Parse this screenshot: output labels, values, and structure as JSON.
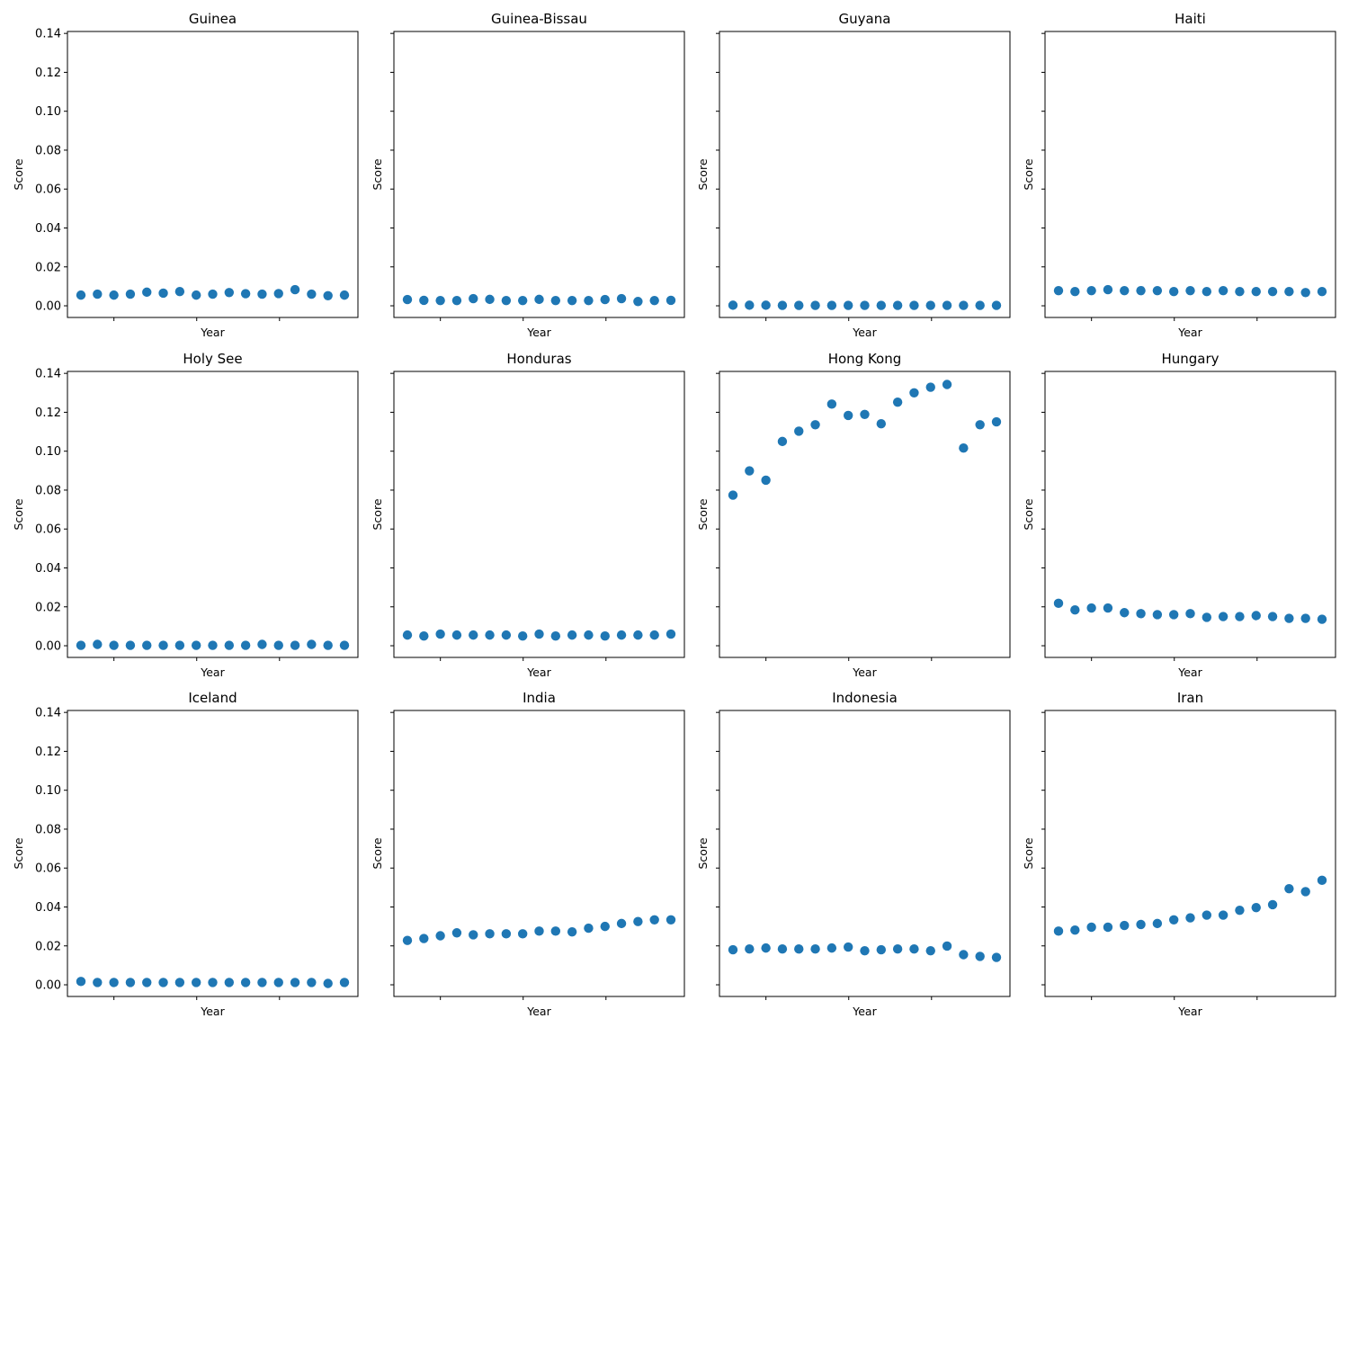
{
  "figure": {
    "ylabel": "Score",
    "xlabel": "Year",
    "y_tick_labels": [
      "0.00",
      "0.02",
      "0.04",
      "0.06",
      "0.08",
      "0.10",
      "0.12",
      "0.14"
    ],
    "marker_color": "#1f77b4"
  },
  "chart_data": [
    {
      "type": "scatter",
      "title": "Guinea",
      "xlabel": "Year",
      "ylabel": "Score",
      "ylim": [
        -0.006,
        0.141
      ],
      "y_ticks": [
        0,
        0.02,
        0.04,
        0.06,
        0.08,
        0.1,
        0.12,
        0.14
      ],
      "x_tick_labels_shown": false,
      "grid": false,
      "series": [
        {
          "values": [
            0.0055,
            0.006,
            0.0055,
            0.006,
            0.007,
            0.0065,
            0.0073,
            0.0055,
            0.006,
            0.0068,
            0.0062,
            0.006,
            0.0063,
            0.0083,
            0.006,
            0.0052,
            0.0055
          ]
        }
      ]
    },
    {
      "type": "scatter",
      "title": "Guinea-Bissau",
      "xlabel": "Year",
      "ylabel": "Score",
      "ylim": [
        -0.006,
        0.141
      ],
      "y_ticks": [
        0,
        0.02,
        0.04,
        0.06,
        0.08,
        0.1,
        0.12,
        0.14
      ],
      "x_tick_labels_shown": false,
      "grid": false,
      "series": [
        {
          "values": [
            0.0032,
            0.0028,
            0.0027,
            0.0027,
            0.0037,
            0.0033,
            0.0027,
            0.0027,
            0.0033,
            0.0027,
            0.0027,
            0.0027,
            0.0032,
            0.0037,
            0.0022,
            0.0027,
            0.0028
          ]
        }
      ]
    },
    {
      "type": "scatter",
      "title": "Guyana",
      "xlabel": "Year",
      "ylabel": "Score",
      "ylim": [
        -0.006,
        0.141
      ],
      "y_ticks": [
        0,
        0.02,
        0.04,
        0.06,
        0.08,
        0.1,
        0.12,
        0.14
      ],
      "x_tick_labels_shown": false,
      "grid": false,
      "series": [
        {
          "values": [
            0.0003,
            0.0003,
            0.0003,
            0.0002,
            0.0002,
            0.0002,
            0.0002,
            0.0002,
            0.0002,
            0.0002,
            0.0002,
            0.0002,
            0.0002,
            0.0002,
            0.0002,
            0.0002,
            0.0002
          ]
        }
      ]
    },
    {
      "type": "scatter",
      "title": "Haiti",
      "xlabel": "Year",
      "ylabel": "Score",
      "ylim": [
        -0.006,
        0.141
      ],
      "y_ticks": [
        0,
        0.02,
        0.04,
        0.06,
        0.08,
        0.1,
        0.12,
        0.14
      ],
      "x_tick_labels_shown": false,
      "grid": false,
      "series": [
        {
          "values": [
            0.0078,
            0.0073,
            0.0078,
            0.0083,
            0.0078,
            0.0078,
            0.0078,
            0.0073,
            0.0078,
            0.0073,
            0.0078,
            0.0073,
            0.0073,
            0.0073,
            0.0073,
            0.0068,
            0.0073
          ]
        }
      ]
    },
    {
      "type": "scatter",
      "title": "Holy See",
      "xlabel": "Year",
      "ylabel": "Score",
      "ylim": [
        -0.006,
        0.141
      ],
      "y_ticks": [
        0,
        0.02,
        0.04,
        0.06,
        0.08,
        0.1,
        0.12,
        0.14
      ],
      "x_tick_labels_shown": false,
      "grid": false,
      "series": [
        {
          "values": [
            0.0002,
            0.0007,
            0.0002,
            0.0002,
            0.0002,
            0.0002,
            0.0002,
            0.0002,
            0.0002,
            0.0002,
            0.0002,
            0.0007,
            0.0002,
            0.0002,
            0.0007,
            0.0002,
            0.0002
          ]
        }
      ]
    },
    {
      "type": "scatter",
      "title": "Honduras",
      "xlabel": "Year",
      "ylabel": "Score",
      "ylim": [
        -0.006,
        0.141
      ],
      "y_ticks": [
        0,
        0.02,
        0.04,
        0.06,
        0.08,
        0.1,
        0.12,
        0.14
      ],
      "x_tick_labels_shown": false,
      "grid": false,
      "series": [
        {
          "values": [
            0.0055,
            0.005,
            0.006,
            0.0055,
            0.0055,
            0.0055,
            0.0055,
            0.005,
            0.006,
            0.005,
            0.0055,
            0.0055,
            0.005,
            0.0055,
            0.0055,
            0.0055,
            0.006
          ]
        }
      ]
    },
    {
      "type": "scatter",
      "title": "Hong Kong",
      "xlabel": "Year",
      "ylabel": "Score",
      "ylim": [
        -0.006,
        0.141
      ],
      "y_ticks": [
        0,
        0.02,
        0.04,
        0.06,
        0.08,
        0.1,
        0.12,
        0.14
      ],
      "x_tick_labels_shown": false,
      "grid": false,
      "series": [
        {
          "values": [
            0.0774,
            0.0899,
            0.0851,
            0.105,
            0.1103,
            0.1136,
            0.1242,
            0.1184,
            0.1189,
            0.1141,
            0.1252,
            0.13,
            0.1329,
            0.1343,
            0.1016,
            0.1136,
            0.1151
          ]
        }
      ]
    },
    {
      "type": "scatter",
      "title": "Hungary",
      "xlabel": "Year",
      "ylabel": "Score",
      "ylim": [
        -0.006,
        0.141
      ],
      "y_ticks": [
        0,
        0.02,
        0.04,
        0.06,
        0.08,
        0.1,
        0.12,
        0.14
      ],
      "x_tick_labels_shown": false,
      "grid": false,
      "series": [
        {
          "values": [
            0.0218,
            0.0184,
            0.0194,
            0.0194,
            0.017,
            0.0165,
            0.016,
            0.016,
            0.0165,
            0.0146,
            0.015,
            0.015,
            0.0155,
            0.015,
            0.0141,
            0.0141,
            0.0136
          ]
        }
      ]
    },
    {
      "type": "scatter",
      "title": "Iceland",
      "xlabel": "Year",
      "ylabel": "Score",
      "ylim": [
        -0.006,
        0.141
      ],
      "y_ticks": [
        0,
        0.02,
        0.04,
        0.06,
        0.08,
        0.1,
        0.12,
        0.14
      ],
      "x_tick_labels_shown": false,
      "grid": false,
      "series": [
        {
          "values": [
            0.0017,
            0.0012,
            0.0012,
            0.0012,
            0.0012,
            0.0012,
            0.0012,
            0.0012,
            0.0012,
            0.0012,
            0.0012,
            0.0012,
            0.0012,
            0.0012,
            0.0012,
            0.0007,
            0.0012
          ]
        }
      ]
    },
    {
      "type": "scatter",
      "title": "India",
      "xlabel": "Year",
      "ylabel": "Score",
      "ylim": [
        -0.006,
        0.141
      ],
      "y_ticks": [
        0,
        0.02,
        0.04,
        0.06,
        0.08,
        0.1,
        0.12,
        0.14
      ],
      "x_tick_labels_shown": false,
      "grid": false,
      "series": [
        {
          "values": [
            0.0228,
            0.0238,
            0.0252,
            0.0267,
            0.0257,
            0.0262,
            0.0262,
            0.0262,
            0.0276,
            0.0276,
            0.0272,
            0.0291,
            0.03,
            0.0315,
            0.0325,
            0.0334,
            0.0334
          ]
        }
      ]
    },
    {
      "type": "scatter",
      "title": "Indonesia",
      "xlabel": "Year",
      "ylabel": "Score",
      "ylim": [
        -0.006,
        0.141
      ],
      "y_ticks": [
        0,
        0.02,
        0.04,
        0.06,
        0.08,
        0.1,
        0.12,
        0.14
      ],
      "x_tick_labels_shown": false,
      "grid": false,
      "series": [
        {
          "values": [
            0.018,
            0.0184,
            0.0189,
            0.0184,
            0.0184,
            0.0184,
            0.0189,
            0.0194,
            0.0175,
            0.018,
            0.0184,
            0.0184,
            0.0175,
            0.0199,
            0.0155,
            0.0146,
            0.0141
          ]
        }
      ]
    },
    {
      "type": "scatter",
      "title": "Iran",
      "xlabel": "Year",
      "ylabel": "Score",
      "ylim": [
        -0.006,
        0.141
      ],
      "y_ticks": [
        0,
        0.02,
        0.04,
        0.06,
        0.08,
        0.1,
        0.12,
        0.14
      ],
      "x_tick_labels_shown": false,
      "grid": false,
      "series": [
        {
          "values": [
            0.0276,
            0.0281,
            0.0296,
            0.0296,
            0.0305,
            0.031,
            0.0315,
            0.0334,
            0.0344,
            0.0358,
            0.0358,
            0.0383,
            0.0397,
            0.0412,
            0.0494,
            0.0479,
            0.0537
          ]
        }
      ]
    }
  ]
}
